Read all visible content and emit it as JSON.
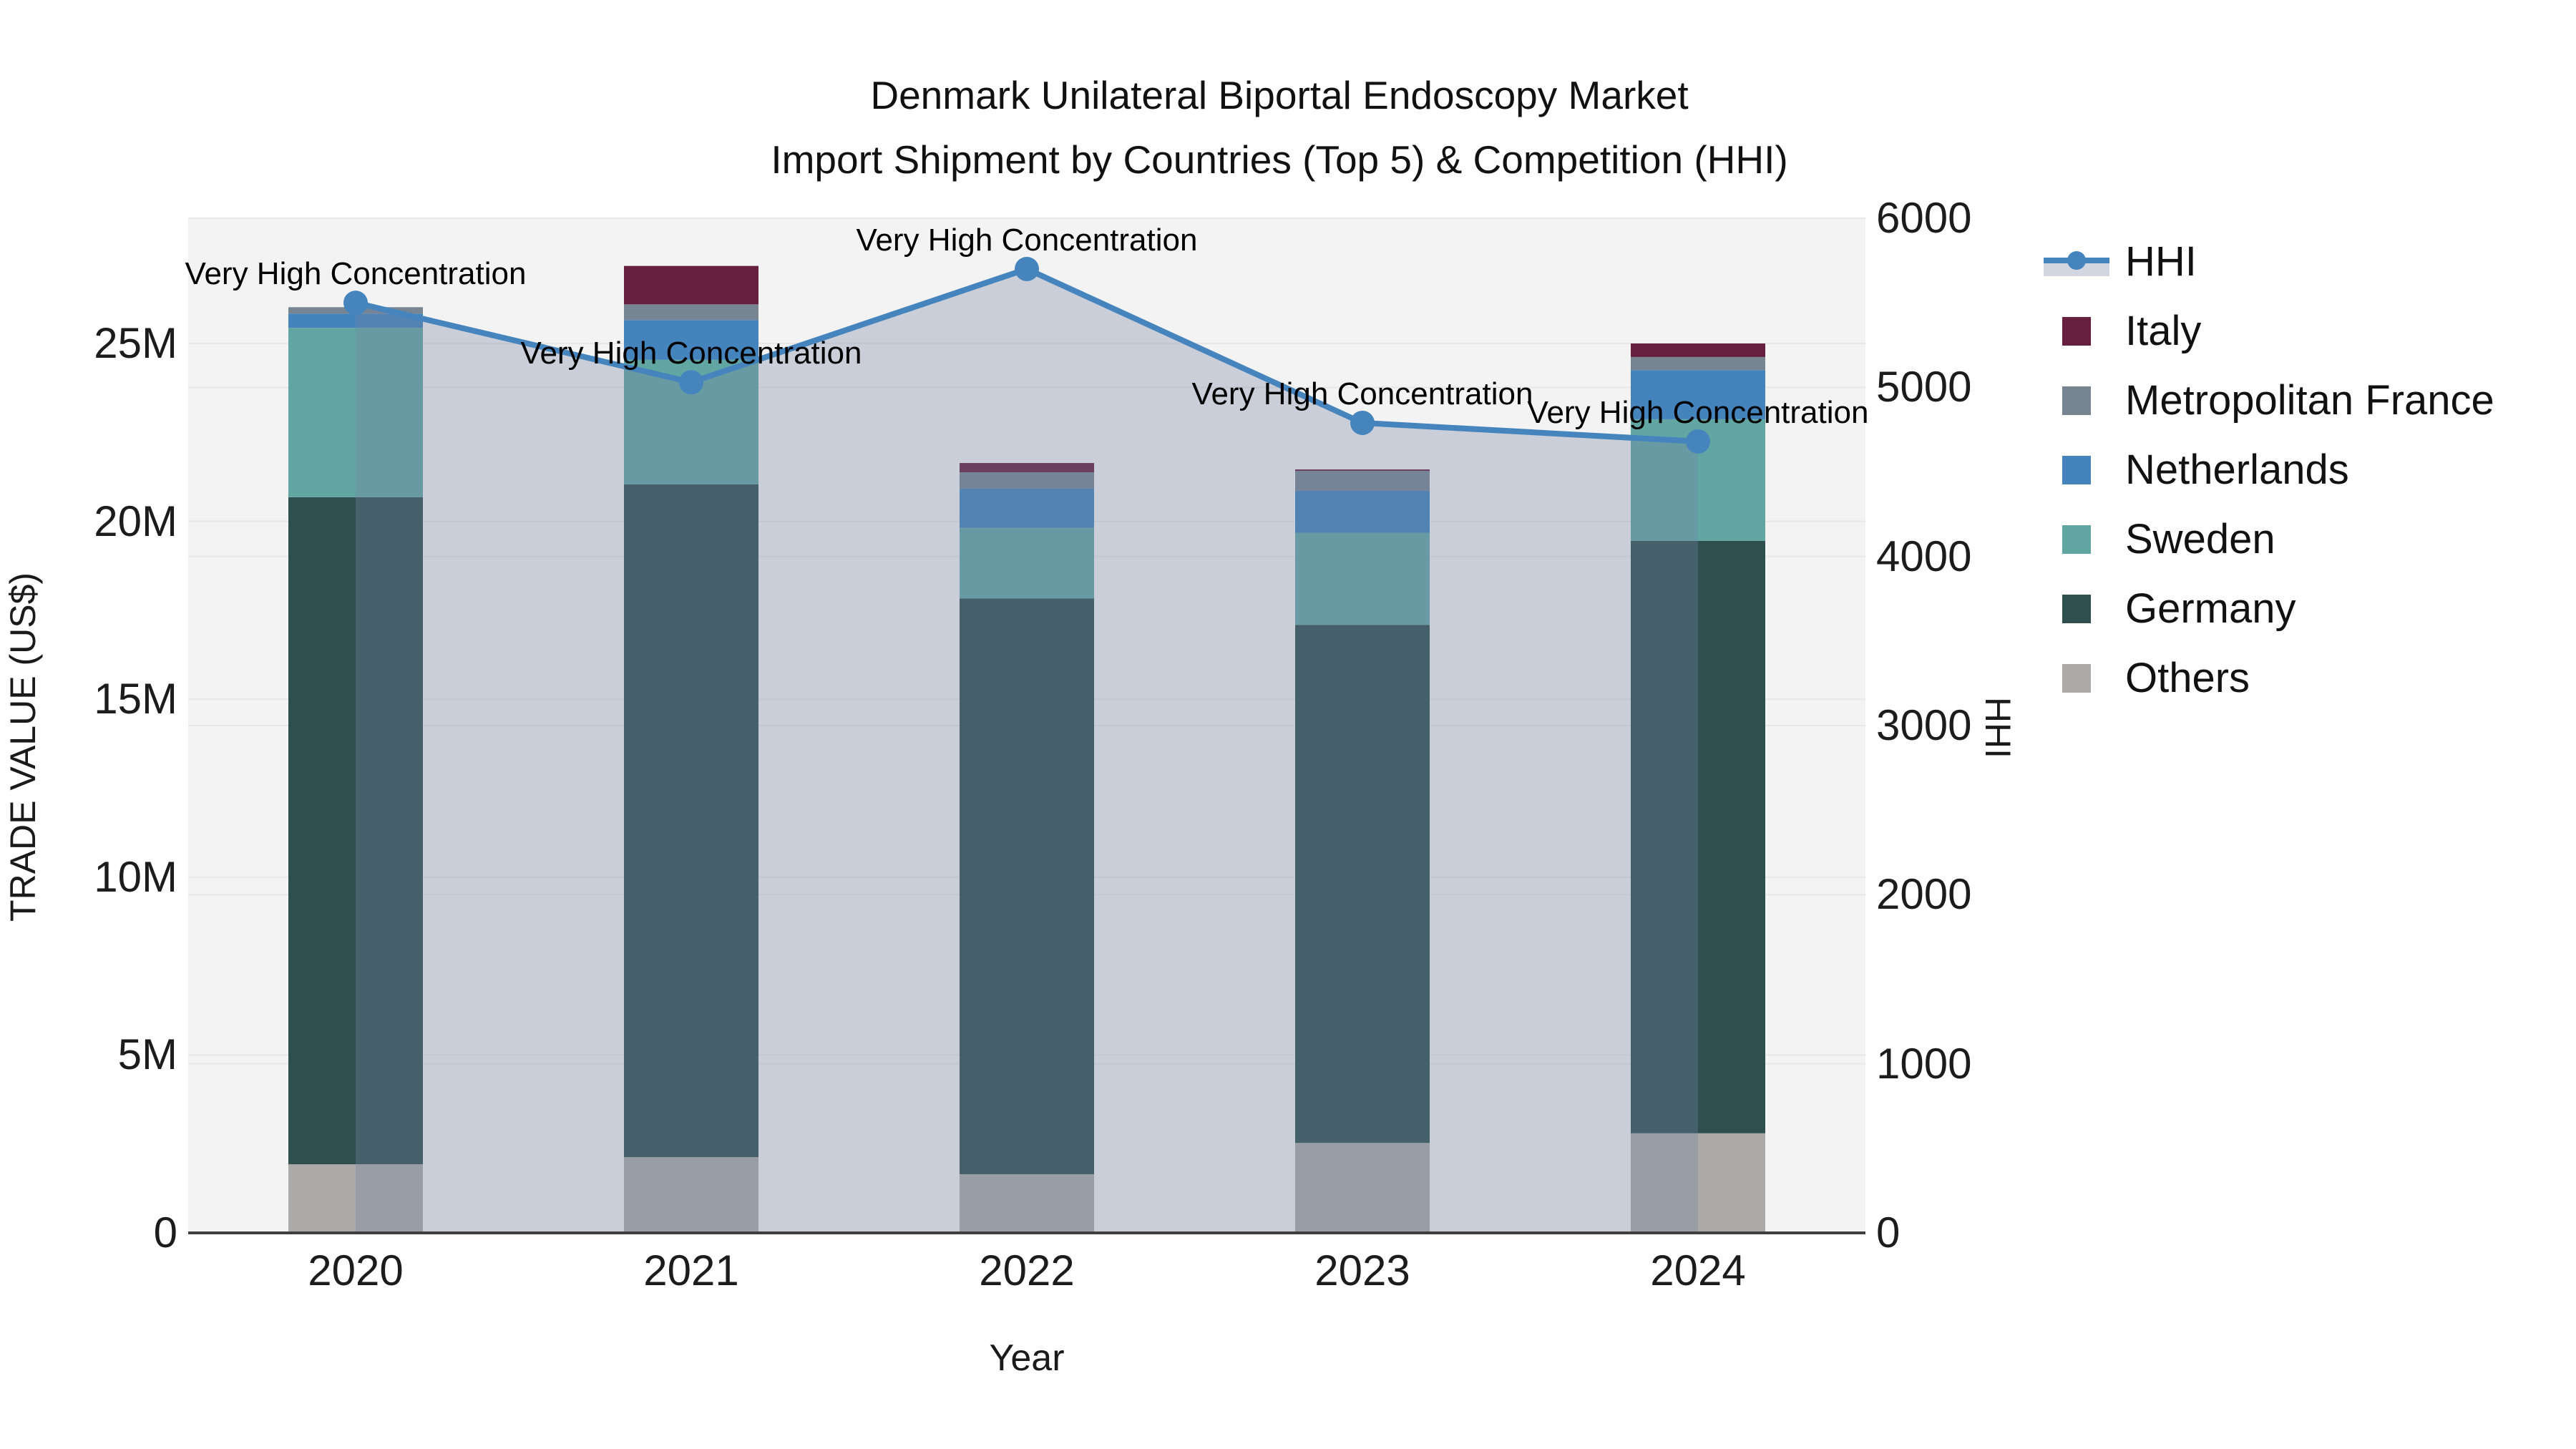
{
  "title": {
    "line1": "Denmark Unilateral Biportal Endoscopy Market",
    "line2": "Import Shipment by Countries (Top 5) & Competition (HHI)"
  },
  "axes": {
    "x": {
      "label": "Year",
      "ticks": [
        "2020",
        "2021",
        "2022",
        "2023",
        "2024"
      ]
    },
    "y_left": {
      "label": "TRADE VALUE (US$)",
      "ticks": [
        "0",
        "5M",
        "10M",
        "15M",
        "20M",
        "25M"
      ]
    },
    "y_right": {
      "label": "HHI",
      "ticks": [
        "0",
        "1000",
        "2000",
        "3000",
        "4000",
        "5000",
        "6000"
      ]
    }
  },
  "legend": {
    "items": [
      {
        "label": "HHI",
        "type": "line",
        "color": "#4584bd"
      },
      {
        "label": "Italy",
        "type": "square",
        "color": "#671f3f"
      },
      {
        "label": "Metropolitan France",
        "type": "square",
        "color": "#778593"
      },
      {
        "label": "Netherlands",
        "type": "square",
        "color": "#4483bb"
      },
      {
        "label": "Sweden",
        "type": "square",
        "color": "#62a6a4"
      },
      {
        "label": "Germany",
        "type": "square",
        "color": "#2f4f4f"
      },
      {
        "label": "Others",
        "type": "square",
        "color": "#acaaa8"
      }
    ]
  },
  "annotation_text": "Very High Concentration",
  "chart_data": {
    "type": "bar",
    "subtype": "stacked-bars-with-line",
    "title": "Denmark Unilateral Biportal Endoscopy Market — Import Shipment by Countries (Top 5) & Competition (HHI)",
    "xlabel": "Year",
    "ylabel_left": "TRADE VALUE (US$)",
    "ylabel_right": "HHI",
    "categories": [
      "2020",
      "2021",
      "2022",
      "2023",
      "2024"
    ],
    "units": "millions US$",
    "stack_order": "bottom_to_top",
    "series": [
      {
        "name": "Others",
        "color": "#acaaa8",
        "values": [
          1.93,
          2.13,
          1.65,
          2.53,
          2.8
        ]
      },
      {
        "name": "Germany",
        "color": "#2f4f4f",
        "values": [
          18.75,
          18.91,
          16.18,
          14.56,
          16.65
        ]
      },
      {
        "name": "Sweden",
        "color": "#62a6a4",
        "values": [
          4.76,
          3.5,
          1.99,
          2.59,
          3.42
        ]
      },
      {
        "name": "Netherlands",
        "color": "#4483bb",
        "values": [
          0.4,
          1.12,
          1.1,
          1.18,
          1.38
        ]
      },
      {
        "name": "Metropolitan France",
        "color": "#778593",
        "values": [
          0.18,
          0.44,
          0.46,
          0.56,
          0.37
        ]
      },
      {
        "name": "Italy",
        "color": "#671f3f",
        "values": [
          0.0,
          1.08,
          0.26,
          0.04,
          0.38
        ]
      }
    ],
    "bar_totals": [
      26.02,
      27.18,
      21.64,
      21.46,
      25.0
    ],
    "hhi_line": {
      "name": "HHI",
      "color": "#4584bd",
      "area_fill": "rgba(114,130,161,0.33)",
      "values": [
        5500,
        5030,
        5700,
        4790,
        4680
      ],
      "annotations": [
        "Very High Concentration",
        "Very High Concentration",
        "Very High Concentration",
        "Very High Concentration",
        "Very High Concentration"
      ]
    },
    "ylim_left": [
      0,
      28.5
    ],
    "ylim_right": [
      0,
      6000
    ],
    "grid": true,
    "plot_bg": "#f3f3f3",
    "legend_position": "right"
  }
}
